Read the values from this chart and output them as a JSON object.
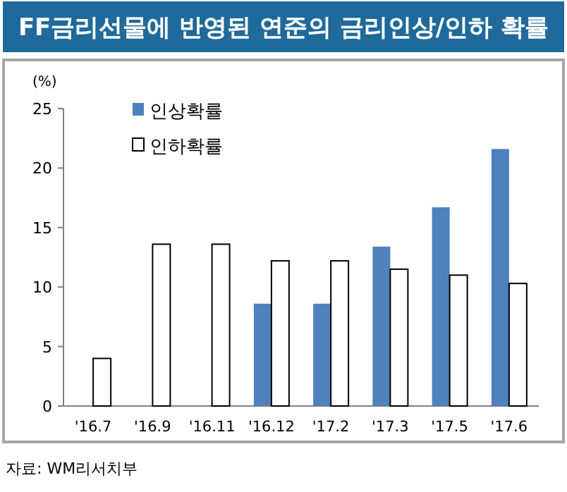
{
  "chart_data": {
    "type": "bar",
    "title": "FF금리선물에 반영된 연준의 금리인상/인하 확률",
    "ylabel": "(%)",
    "categories": [
      "'16.7",
      "'16.9",
      "'16.11",
      "'16.12",
      "'17.2",
      "'17.3",
      "'17.5",
      "'17.6"
    ],
    "series": [
      {
        "name": "인상확률",
        "color": "#4f81bd",
        "values": [
          null,
          null,
          null,
          8.6,
          8.6,
          13.4,
          16.7,
          21.6
        ]
      },
      {
        "name": "인하확률",
        "color": "#ffffff",
        "values": [
          4.0,
          13.6,
          13.6,
          12.2,
          12.2,
          11.5,
          11.0,
          10.3
        ]
      }
    ],
    "ylim": [
      0,
      25
    ],
    "yticks": [
      0,
      5,
      10,
      15,
      20,
      25
    ],
    "legend": "top left",
    "grid": false,
    "annotations": [
      "자료: WM리서치부"
    ]
  }
}
